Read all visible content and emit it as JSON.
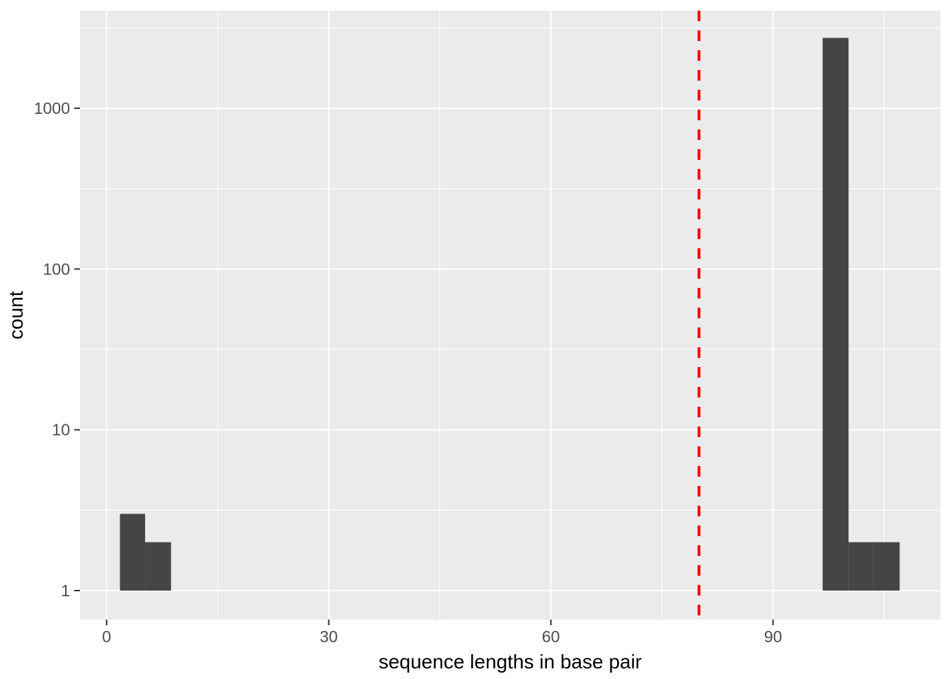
{
  "chart_data": {
    "type": "histogram",
    "title": "",
    "xlabel": "sequence lengths in base pair",
    "ylabel": "count",
    "x_scale": "linear",
    "y_scale": "log10",
    "xlim": [
      -3.6,
      112.6
    ],
    "ylim": [
      0.66,
      4050
    ],
    "x_ticks": [
      0,
      30,
      60,
      90
    ],
    "x_minor_ticks": [
      15,
      45,
      75,
      105
    ],
    "y_ticks": [
      1,
      10,
      100,
      1000
    ],
    "y_minor_ticks": [
      3.1623,
      31.623,
      316.23,
      3162.3
    ],
    "grid": true,
    "legend": "none",
    "baseline_count": 1,
    "bins": [
      {
        "x0": 1.8,
        "x1": 5.2,
        "count": 3
      },
      {
        "x0": 5.2,
        "x1": 8.7,
        "count": 2
      },
      {
        "x0": 96.7,
        "x1": 100.2,
        "count": 2740
      },
      {
        "x0": 100.2,
        "x1": 103.6,
        "count": 2
      },
      {
        "x0": 103.6,
        "x1": 107.1,
        "count": 2
      }
    ],
    "vline": {
      "x": 80,
      "style": "dashed",
      "color": "#FF0000"
    }
  },
  "style": {
    "panel_bg": "#EBEBEB",
    "grid_color": "#FFFFFF",
    "bar_fill": "#454545",
    "tick_mark_color": "#333333",
    "tick_label_color": "#4D4D4D",
    "axis_title_color": "#000000",
    "figure_bg": "#FFFFFF"
  }
}
